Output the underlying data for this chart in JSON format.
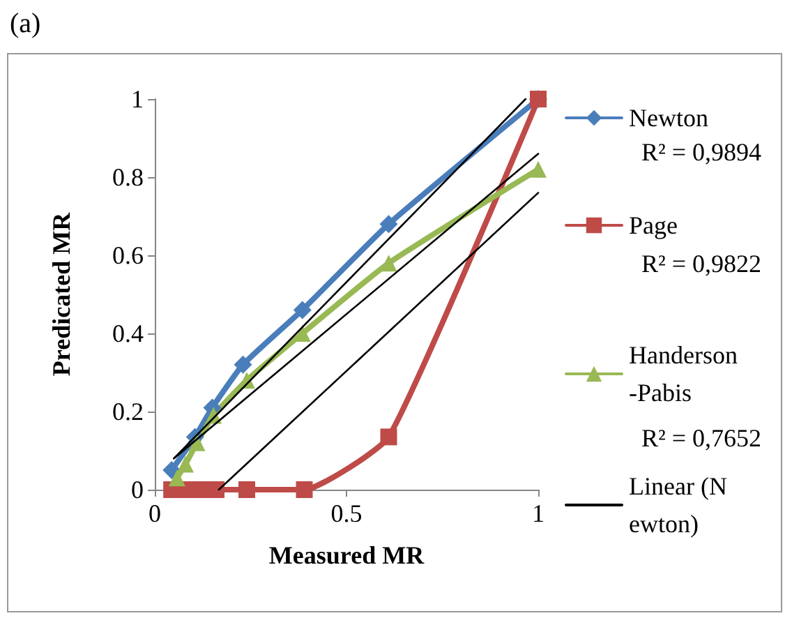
{
  "chart_data": {
    "type": "line",
    "title": "(a)",
    "xlabel": "Measured MR",
    "ylabel": "Predicated MR",
    "xlim": [
      0,
      1
    ],
    "xticks": [
      0,
      0.5,
      1
    ],
    "ylim": [
      0,
      1
    ],
    "yticks": [
      0,
      0.2,
      0.4,
      0.6,
      0.8,
      1
    ],
    "grid": false,
    "legend": "right",
    "annotations": [
      "R² = 0,9894",
      "R² = 0,9822",
      "R² = 0,7652"
    ],
    "series": [
      {
        "name": "Newton",
        "color": "#4a7ebb",
        "marker": "diamond",
        "x": [
          0.044,
          0.105,
          0.15,
          0.23,
          0.385,
          0.61,
          1
        ],
        "values": [
          0.05,
          0.135,
          0.21,
          0.32,
          0.46,
          0.68,
          1
        ]
      },
      {
        "name": "Page",
        "color": "#be4b48",
        "marker": "square",
        "x": [
          0.044,
          0.087,
          0.124,
          0.16,
          0.24,
          0.39,
          0.61,
          1
        ],
        "values": [
          0,
          0,
          0,
          0,
          0,
          0,
          0.135,
          1
        ]
      },
      {
        "name": "Handerson-Pabis",
        "color": "#98b954",
        "marker": "triangle",
        "x": [
          0.058,
          0.08,
          0.11,
          0.153,
          0.24,
          0.385,
          0.61,
          1
        ],
        "values": [
          0.03,
          0.065,
          0.12,
          0.19,
          0.28,
          0.4,
          0.58,
          0.82
        ]
      },
      {
        "name": "Linear (Newton)",
        "color": "#000000",
        "marker": "none",
        "x": [
          0.05,
          0.967
        ],
        "values": [
          0.08,
          1
        ]
      },
      {
        "color": "#000000",
        "marker": "none",
        "x": [
          0.05,
          1
        ],
        "values": [
          0.08,
          0.86
        ]
      },
      {
        "color": "#000000",
        "marker": "none",
        "x": [
          0.167,
          1
        ],
        "values": [
          0,
          0.76
        ]
      }
    ]
  }
}
